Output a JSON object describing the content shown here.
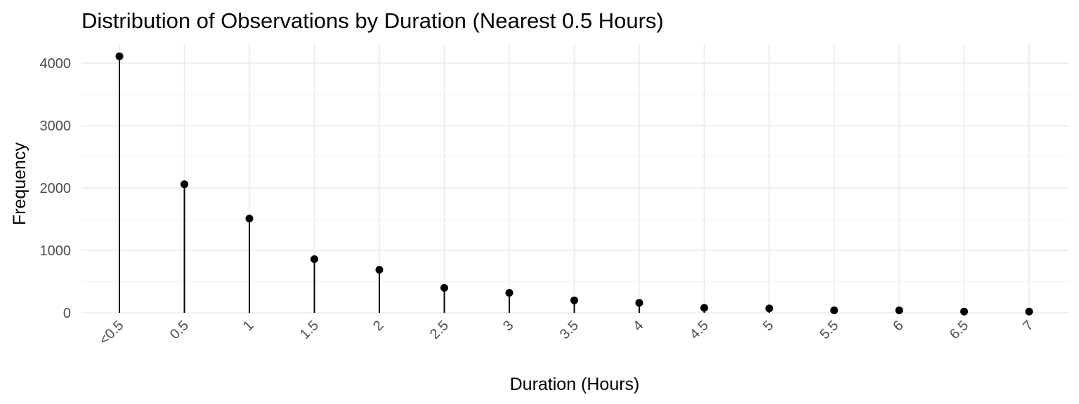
{
  "chart_data": {
    "type": "lollipop",
    "title": "Distribution of Observations by Duration (Nearest 0.5 Hours)",
    "xlabel": "Duration (Hours)",
    "ylabel": "Frequency",
    "categories": [
      "<0.5",
      "0.5",
      "1",
      "1.5",
      "2",
      "2.5",
      "3",
      "3.5",
      "4",
      "4.5",
      "5",
      "5.5",
      "6",
      "6.5",
      "7"
    ],
    "values": [
      4110,
      2060,
      1510,
      860,
      690,
      400,
      320,
      200,
      160,
      80,
      70,
      40,
      40,
      20,
      20
    ],
    "yticks": [
      0,
      1000,
      2000,
      3000,
      4000
    ],
    "ylim": [
      0,
      4300
    ],
    "grid": true,
    "colors": {
      "points": "#000000",
      "grid": "#ebebeb",
      "tick_text": "#4d4d4d"
    }
  }
}
